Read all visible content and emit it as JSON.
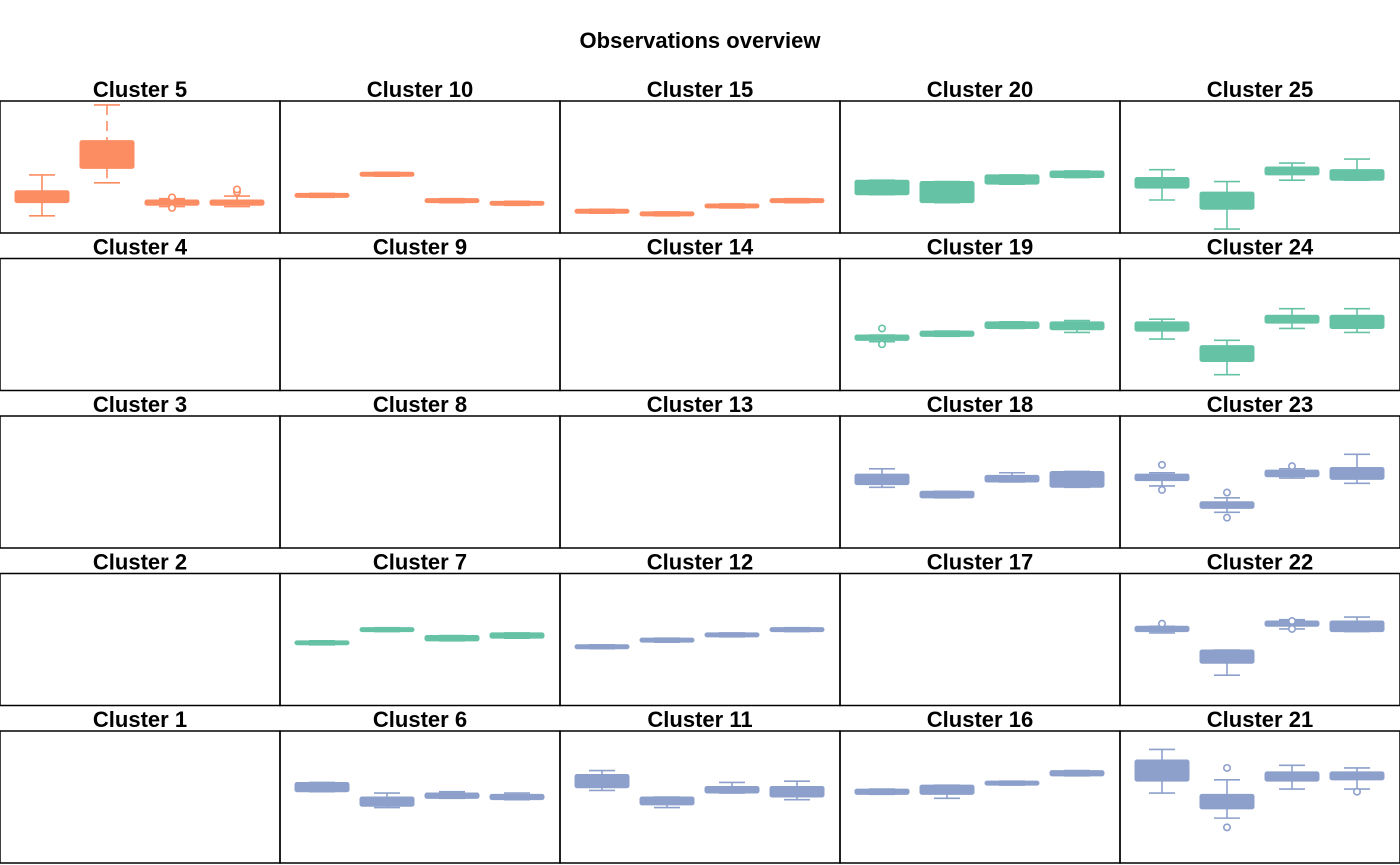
{
  "chart_data": {
    "type": "boxplot",
    "title": "Observations overview",
    "ylim": [
      0,
      100
    ],
    "colors": {
      "orange": "#fc8d62",
      "green": "#66c2a5",
      "blue": "#8da0cb"
    },
    "panels": [
      {
        "name": "Cluster 5",
        "color": "orange",
        "boxes": [
          {
            "q1": 23,
            "q3": 32,
            "median": 27,
            "wl": 13,
            "wh": 44,
            "out": []
          },
          {
            "q1": 49,
            "q3": 70,
            "median": 59,
            "wl": 38,
            "wh": 97,
            "out": []
          },
          {
            "q1": 21,
            "q3": 25,
            "median": 23,
            "wl": 20,
            "wh": 26,
            "out": [
              19,
              27
            ]
          },
          {
            "q1": 21,
            "q3": 25,
            "median": 23,
            "wl": 20,
            "wh": 28,
            "out": [
              31,
              33
            ]
          }
        ]
      },
      {
        "name": "Cluster 10",
        "color": "orange",
        "boxes": [
          {
            "q1": 27,
            "q3": 30,
            "median": 28.5,
            "wl": 27,
            "wh": 30,
            "out": []
          },
          {
            "q1": 43,
            "q3": 46,
            "median": 44.5,
            "wl": 43,
            "wh": 46,
            "out": []
          },
          {
            "q1": 23,
            "q3": 26,
            "median": 24.5,
            "wl": 23,
            "wh": 26,
            "out": []
          },
          {
            "q1": 21,
            "q3": 24,
            "median": 22.5,
            "wl": 21,
            "wh": 24,
            "out": []
          }
        ]
      },
      {
        "name": "Cluster 15",
        "color": "orange",
        "boxes": [
          {
            "q1": 15,
            "q3": 18,
            "median": 16.5,
            "wl": 15,
            "wh": 18,
            "out": []
          },
          {
            "q1": 13,
            "q3": 16,
            "median": 14.5,
            "wl": 13,
            "wh": 16,
            "out": []
          },
          {
            "q1": 19,
            "q3": 22,
            "median": 20.5,
            "wl": 19,
            "wh": 22,
            "out": []
          },
          {
            "q1": 23,
            "q3": 26,
            "median": 24.5,
            "wl": 23,
            "wh": 26,
            "out": []
          }
        ]
      },
      {
        "name": "Cluster 20",
        "color": "green",
        "boxes": [
          {
            "q1": 29,
            "q3": 40,
            "median": 35,
            "wl": 29,
            "wh": 40,
            "out": []
          },
          {
            "q1": 23,
            "q3": 39,
            "median": 31,
            "wl": 23,
            "wh": 39,
            "out": []
          },
          {
            "q1": 37,
            "q3": 44,
            "median": 40,
            "wl": 37,
            "wh": 44,
            "out": []
          },
          {
            "q1": 42,
            "q3": 47,
            "median": 45,
            "wl": 42,
            "wh": 47,
            "out": []
          }
        ]
      },
      {
        "name": "Cluster 25",
        "color": "green",
        "boxes": [
          {
            "q1": 34,
            "q3": 42,
            "median": 38,
            "wl": 25,
            "wh": 48,
            "out": []
          },
          {
            "q1": 18,
            "q3": 31,
            "median": 24,
            "wl": 3,
            "wh": 39,
            "out": []
          },
          {
            "q1": 44,
            "q3": 50,
            "median": 47,
            "wl": 40,
            "wh": 53,
            "out": []
          },
          {
            "q1": 40,
            "q3": 48,
            "median": 44,
            "wl": 40,
            "wh": 56,
            "out": []
          }
        ]
      },
      {
        "name": "Cluster 4",
        "color": "orange",
        "boxes": []
      },
      {
        "name": "Cluster 9",
        "color": "orange",
        "boxes": []
      },
      {
        "name": "Cluster 14",
        "color": "orange",
        "boxes": []
      },
      {
        "name": "Cluster 19",
        "color": "green",
        "boxes": [
          {
            "q1": 38,
            "q3": 42,
            "median": 40,
            "wl": 37,
            "wh": 42,
            "out": [
              35,
              47
            ]
          },
          {
            "q1": 41,
            "q3": 45,
            "median": 43,
            "wl": 41,
            "wh": 45,
            "out": []
          },
          {
            "q1": 47,
            "q3": 52,
            "median": 50,
            "wl": 47,
            "wh": 52,
            "out": []
          },
          {
            "q1": 46,
            "q3": 52,
            "median": 49,
            "wl": 44,
            "wh": 53,
            "out": []
          }
        ]
      },
      {
        "name": "Cluster 24",
        "color": "green",
        "boxes": [
          {
            "q1": 45,
            "q3": 52,
            "median": 48,
            "wl": 39,
            "wh": 54,
            "out": []
          },
          {
            "q1": 22,
            "q3": 34,
            "median": 28,
            "wl": 12,
            "wh": 38,
            "out": []
          },
          {
            "q1": 51,
            "q3": 57,
            "median": 54,
            "wl": 47,
            "wh": 62,
            "out": []
          },
          {
            "q1": 47,
            "q3": 57,
            "median": 52,
            "wl": 44,
            "wh": 62,
            "out": []
          }
        ]
      },
      {
        "name": "Cluster 3",
        "color": "blue",
        "boxes": []
      },
      {
        "name": "Cluster 8",
        "color": "blue",
        "boxes": []
      },
      {
        "name": "Cluster 13",
        "color": "blue",
        "boxes": []
      },
      {
        "name": "Cluster 18",
        "color": "blue",
        "boxes": [
          {
            "q1": 48,
            "q3": 56,
            "median": 52,
            "wl": 46,
            "wh": 60,
            "out": []
          },
          {
            "q1": 38,
            "q3": 43,
            "median": 40,
            "wl": 38,
            "wh": 43,
            "out": []
          },
          {
            "q1": 50,
            "q3": 55,
            "median": 53,
            "wl": 50,
            "wh": 57,
            "out": []
          },
          {
            "q1": 46,
            "q3": 58,
            "median": 52,
            "wl": 46,
            "wh": 58,
            "out": []
          }
        ]
      },
      {
        "name": "Cluster 23",
        "color": "blue",
        "boxes": [
          {
            "q1": 51,
            "q3": 56,
            "median": 53,
            "wl": 47,
            "wh": 57,
            "out": [
              44,
              63
            ]
          },
          {
            "q1": 30,
            "q3": 35,
            "median": 32,
            "wl": 27,
            "wh": 38,
            "out": [
              23,
              42
            ]
          },
          {
            "q1": 54,
            "q3": 59,
            "median": 57,
            "wl": 53,
            "wh": 60,
            "out": [
              62
            ]
          },
          {
            "q1": 52,
            "q3": 61,
            "median": 56,
            "wl": 49,
            "wh": 71,
            "out": []
          }
        ]
      },
      {
        "name": "Cluster 2",
        "color": "blue",
        "boxes": []
      },
      {
        "name": "Cluster 7",
        "color": "green",
        "boxes": [
          {
            "q1": 46,
            "q3": 49,
            "median": 47.5,
            "wl": 46,
            "wh": 49,
            "out": []
          },
          {
            "q1": 56,
            "q3": 59,
            "median": 57.5,
            "wl": 56,
            "wh": 59,
            "out": []
          },
          {
            "q1": 49,
            "q3": 53,
            "median": 51,
            "wl": 49,
            "wh": 53,
            "out": []
          },
          {
            "q1": 51,
            "q3": 55,
            "median": 53,
            "wl": 51,
            "wh": 55,
            "out": []
          }
        ]
      },
      {
        "name": "Cluster 12",
        "color": "blue",
        "boxes": [
          {
            "q1": 43,
            "q3": 46,
            "median": 44.5,
            "wl": 43,
            "wh": 46,
            "out": []
          },
          {
            "q1": 48,
            "q3": 51,
            "median": 49.5,
            "wl": 48,
            "wh": 51,
            "out": []
          },
          {
            "q1": 52,
            "q3": 55,
            "median": 53.5,
            "wl": 52,
            "wh": 55,
            "out": []
          },
          {
            "q1": 56,
            "q3": 59,
            "median": 57.5,
            "wl": 56,
            "wh": 59,
            "out": []
          }
        ]
      },
      {
        "name": "Cluster 17",
        "color": "blue",
        "boxes": []
      },
      {
        "name": "Cluster 22",
        "color": "blue",
        "boxes": [
          {
            "q1": 56,
            "q3": 60,
            "median": 58,
            "wl": 55,
            "wh": 60,
            "out": [
              62
            ]
          },
          {
            "q1": 32,
            "q3": 42,
            "median": 37,
            "wl": 23,
            "wh": 42,
            "out": []
          },
          {
            "q1": 60,
            "q3": 64,
            "median": 62,
            "wl": 58,
            "wh": 65,
            "out": [
              58,
              64
            ]
          },
          {
            "q1": 56,
            "q3": 64,
            "median": 60,
            "wl": 56,
            "wh": 67,
            "out": []
          }
        ]
      },
      {
        "name": "Cluster 1",
        "color": "blue",
        "boxes": []
      },
      {
        "name": "Cluster 6",
        "color": "blue",
        "boxes": [
          {
            "q1": 54,
            "q3": 61,
            "median": 57,
            "wl": 54,
            "wh": 61,
            "out": []
          },
          {
            "q1": 43,
            "q3": 50,
            "median": 47,
            "wl": 42,
            "wh": 53,
            "out": []
          },
          {
            "q1": 49,
            "q3": 53,
            "median": 51,
            "wl": 49,
            "wh": 54,
            "out": []
          },
          {
            "q1": 48,
            "q3": 52,
            "median": 50,
            "wl": 48,
            "wh": 53,
            "out": []
          }
        ]
      },
      {
        "name": "Cluster 11",
        "color": "blue",
        "boxes": [
          {
            "q1": 57,
            "q3": 67,
            "median": 62,
            "wl": 55,
            "wh": 70,
            "out": []
          },
          {
            "q1": 44,
            "q3": 50,
            "median": 47,
            "wl": 42,
            "wh": 50,
            "out": []
          },
          {
            "q1": 53,
            "q3": 58,
            "median": 55,
            "wl": 53,
            "wh": 61,
            "out": []
          },
          {
            "q1": 50,
            "q3": 58,
            "median": 54,
            "wl": 48,
            "wh": 62,
            "out": []
          }
        ]
      },
      {
        "name": "Cluster 16",
        "color": "blue",
        "boxes": [
          {
            "q1": 52,
            "q3": 56,
            "median": 54,
            "wl": 52,
            "wh": 56,
            "out": []
          },
          {
            "q1": 52,
            "q3": 59,
            "median": 55,
            "wl": 49,
            "wh": 59,
            "out": []
          },
          {
            "q1": 59,
            "q3": 62,
            "median": 60,
            "wl": 59,
            "wh": 62,
            "out": []
          },
          {
            "q1": 66,
            "q3": 70,
            "median": 68,
            "wl": 66,
            "wh": 70,
            "out": []
          }
        ]
      },
      {
        "name": "Cluster 21",
        "color": "blue",
        "boxes": [
          {
            "q1": 62,
            "q3": 78,
            "median": 70,
            "wl": 53,
            "wh": 86,
            "out": []
          },
          {
            "q1": 41,
            "q3": 52,
            "median": 46,
            "wl": 34,
            "wh": 63,
            "out": [
              27,
              72
            ]
          },
          {
            "q1": 62,
            "q3": 69,
            "median": 65,
            "wl": 56,
            "wh": 74,
            "out": []
          },
          {
            "q1": 63,
            "q3": 69,
            "median": 66,
            "wl": 56,
            "wh": 72,
            "out": [
              54
            ]
          }
        ]
      }
    ]
  }
}
